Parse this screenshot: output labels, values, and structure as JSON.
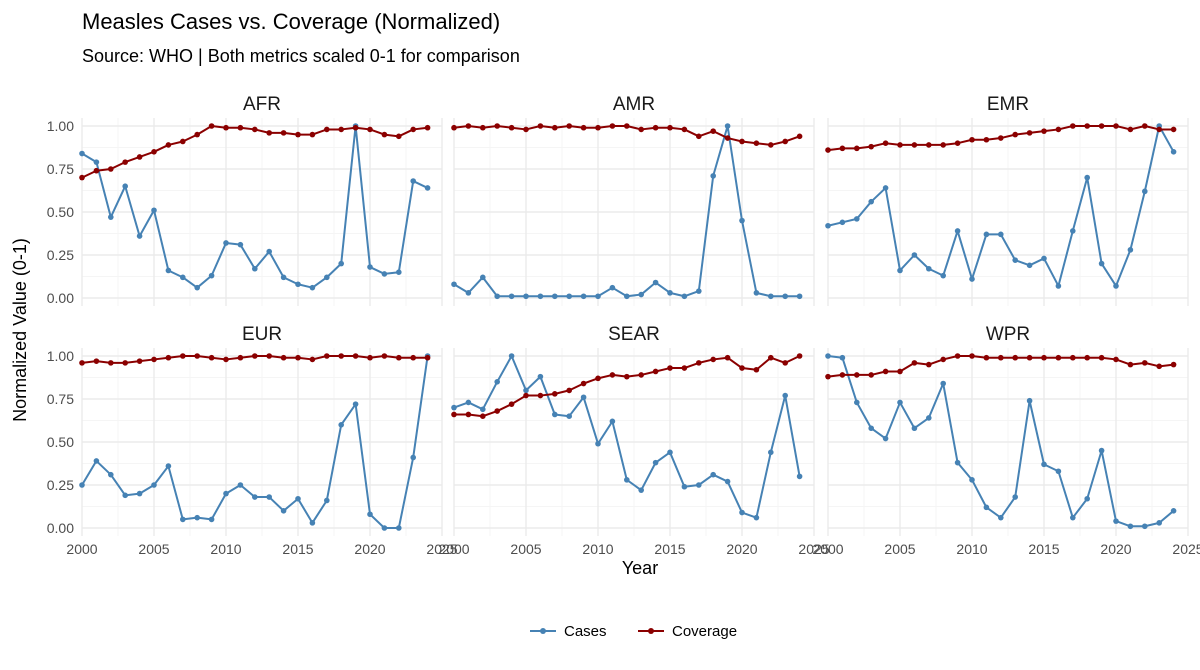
{
  "colors": {
    "cases": "#4682b4",
    "coverage": "#8b0000",
    "grid_major": "#ebebeb",
    "grid_minor": "#f5f5f5"
  },
  "chart_data": {
    "type": "line",
    "title": "Measles Cases vs. Coverage (Normalized)",
    "subtitle": "Source: WHO | Both metrics scaled 0-1 for comparison",
    "xlabel": "Year",
    "ylabel": "Normalized Value (0-1)",
    "xlim": [
      2000,
      2025
    ],
    "ylim": [
      0,
      1
    ],
    "x_ticks": [
      "2000",
      "2005",
      "2010",
      "2015",
      "2020",
      "2025"
    ],
    "y_ticks": [
      "0.00",
      "0.25",
      "0.50",
      "0.75",
      "1.00"
    ],
    "legend": [
      "Cases",
      "Coverage"
    ],
    "legend_position": "bottom",
    "x": [
      2000,
      2001,
      2002,
      2003,
      2004,
      2005,
      2006,
      2007,
      2008,
      2009,
      2010,
      2011,
      2012,
      2013,
      2014,
      2015,
      2016,
      2017,
      2018,
      2019,
      2020,
      2021,
      2022,
      2023,
      2024
    ],
    "facets": [
      {
        "name": "AFR",
        "cases": [
          0.84,
          0.79,
          0.47,
          0.65,
          0.36,
          0.51,
          0.16,
          0.12,
          0.06,
          0.13,
          0.32,
          0.31,
          0.17,
          0.27,
          0.12,
          0.08,
          0.06,
          0.12,
          0.2,
          1.0,
          0.18,
          0.14,
          0.15,
          0.68,
          0.64
        ],
        "coverage": [
          0.7,
          0.74,
          0.75,
          0.79,
          0.82,
          0.85,
          0.89,
          0.91,
          0.95,
          1.0,
          0.99,
          0.99,
          0.98,
          0.96,
          0.96,
          0.95,
          0.95,
          0.98,
          0.98,
          0.99,
          0.98,
          0.95,
          0.94,
          0.98,
          0.99
        ]
      },
      {
        "name": "AMR",
        "cases": [
          0.08,
          0.03,
          0.12,
          0.01,
          0.01,
          0.01,
          0.01,
          0.01,
          0.01,
          0.01,
          0.01,
          0.06,
          0.01,
          0.02,
          0.09,
          0.03,
          0.01,
          0.04,
          0.71,
          1.0,
          0.45,
          0.03,
          0.01,
          0.01,
          0.01
        ],
        "coverage": [
          0.99,
          1.0,
          0.99,
          1.0,
          0.99,
          0.98,
          1.0,
          0.99,
          1.0,
          0.99,
          0.99,
          1.0,
          1.0,
          0.98,
          0.99,
          0.99,
          0.98,
          0.94,
          0.97,
          0.93,
          0.91,
          0.9,
          0.89,
          0.91,
          0.94
        ]
      },
      {
        "name": "EMR",
        "cases": [
          0.42,
          0.44,
          0.46,
          0.56,
          0.64,
          0.16,
          0.25,
          0.17,
          0.13,
          0.39,
          0.11,
          0.37,
          0.37,
          0.22,
          0.19,
          0.23,
          0.07,
          0.39,
          0.7,
          0.2,
          0.07,
          0.28,
          0.62,
          1.0,
          0.85
        ],
        "coverage": [
          0.86,
          0.87,
          0.87,
          0.88,
          0.9,
          0.89,
          0.89,
          0.89,
          0.89,
          0.9,
          0.92,
          0.92,
          0.93,
          0.95,
          0.96,
          0.97,
          0.98,
          1.0,
          1.0,
          1.0,
          1.0,
          0.98,
          1.0,
          0.98,
          0.98
        ]
      },
      {
        "name": "EUR",
        "cases": [
          0.25,
          0.39,
          0.31,
          0.19,
          0.2,
          0.25,
          0.36,
          0.05,
          0.06,
          0.05,
          0.2,
          0.25,
          0.18,
          0.18,
          0.1,
          0.17,
          0.03,
          0.16,
          0.6,
          0.72,
          0.08,
          0.0,
          0.0,
          0.41,
          1.0
        ],
        "coverage": [
          0.96,
          0.97,
          0.96,
          0.96,
          0.97,
          0.98,
          0.99,
          1.0,
          1.0,
          0.99,
          0.98,
          0.99,
          1.0,
          1.0,
          0.99,
          0.99,
          0.98,
          1.0,
          1.0,
          1.0,
          0.99,
          1.0,
          0.99,
          0.99,
          0.99
        ]
      },
      {
        "name": "SEAR",
        "cases": [
          0.7,
          0.73,
          0.69,
          0.85,
          1.0,
          0.8,
          0.88,
          0.66,
          0.65,
          0.76,
          0.49,
          0.62,
          0.28,
          0.22,
          0.38,
          0.44,
          0.24,
          0.25,
          0.31,
          0.27,
          0.09,
          0.06,
          0.44,
          0.77,
          0.3
        ],
        "coverage": [
          0.66,
          0.66,
          0.65,
          0.68,
          0.72,
          0.77,
          0.77,
          0.78,
          0.8,
          0.84,
          0.87,
          0.89,
          0.88,
          0.89,
          0.91,
          0.93,
          0.93,
          0.96,
          0.98,
          0.99,
          0.93,
          0.92,
          0.99,
          0.96,
          1.0
        ]
      },
      {
        "name": "WPR",
        "cases": [
          1.0,
          0.99,
          0.73,
          0.58,
          0.52,
          0.73,
          0.58,
          0.64,
          0.84,
          0.38,
          0.28,
          0.12,
          0.06,
          0.18,
          0.74,
          0.37,
          0.33,
          0.06,
          0.17,
          0.45,
          0.04,
          0.01,
          0.01,
          0.03,
          0.1
        ],
        "coverage": [
          0.88,
          0.89,
          0.89,
          0.89,
          0.91,
          0.91,
          0.96,
          0.95,
          0.98,
          1.0,
          1.0,
          0.99,
          0.99,
          0.99,
          0.99,
          0.99,
          0.99,
          0.99,
          0.99,
          0.99,
          0.98,
          0.95,
          0.96,
          0.94,
          0.95
        ]
      }
    ]
  }
}
